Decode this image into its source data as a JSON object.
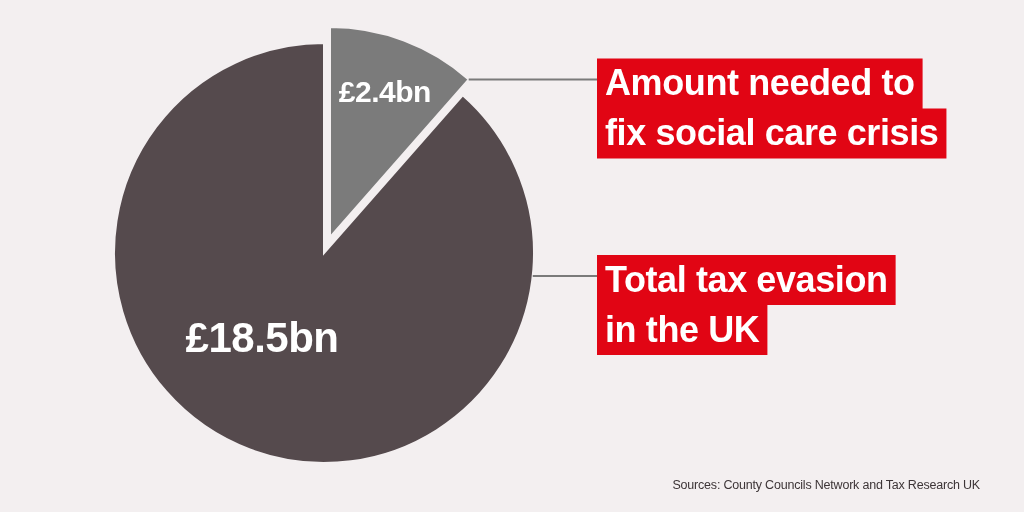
{
  "chart_data": {
    "type": "pie",
    "categories": [
      "Amount needed to\nfix social care crisis",
      "Total tax evasion\nin the UK"
    ],
    "values": [
      2.4,
      18.5
    ],
    "colors": [
      "#7b7b7b",
      "#554a4d"
    ],
    "value_labels": [
      "£2.4bn",
      "£18.5bn"
    ],
    "annotations": [
      "Sources: County Councils Network and Tax Research UK"
    ]
  }
}
